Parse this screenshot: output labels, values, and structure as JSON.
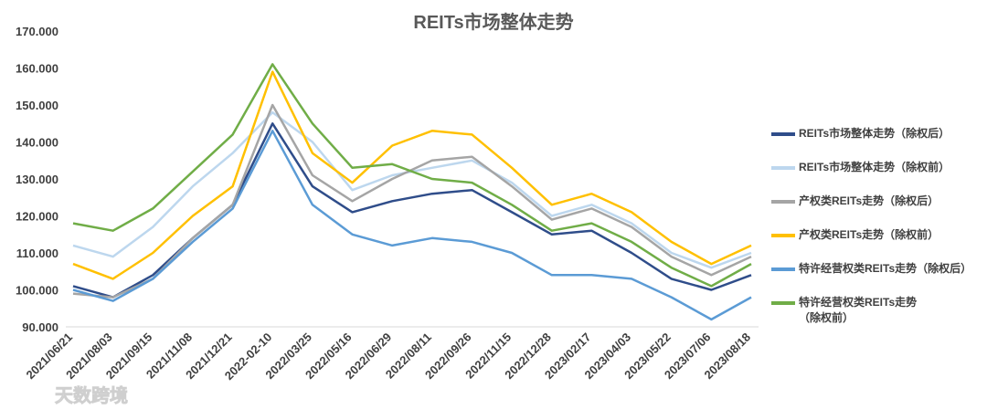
{
  "chart_data": {
    "type": "line",
    "title": "REITs市场整体走势",
    "xlabel": "",
    "ylabel": "",
    "ylim": [
      90,
      170
    ],
    "yticks": [
      "90.000",
      "100.000",
      "110.000",
      "120.000",
      "130.000",
      "140.000",
      "150.000",
      "160.000",
      "170.000"
    ],
    "x_tick_labels": [
      "2021/06/21",
      "2021/08/03",
      "2021/09/15",
      "2021/11/08",
      "2021/12/21",
      "2022-02-10",
      "2022/03/25",
      "2022/05/16",
      "2022/06/29",
      "2022/08/11",
      "2022/09/26",
      "2022/11/15",
      "2022/12/28",
      "2023/02/17",
      "2023/04/03",
      "2023/05/22",
      "2023/07/06",
      "2023/08/18"
    ],
    "legend_position": "right",
    "grid": false,
    "series": [
      {
        "name": "REITs市场整体走势（除权后）",
        "color": "#2F4D8A",
        "values": [
          101,
          98,
          104,
          114,
          123,
          145,
          128,
          121,
          124,
          126,
          127,
          121,
          115,
          116,
          110,
          103,
          100,
          104
        ]
      },
      {
        "name": "REITs市场整体走势（除权前）",
        "color": "#BDD7EE",
        "values": [
          112,
          109,
          117,
          128,
          137,
          148,
          140,
          127,
          131,
          133,
          135,
          129,
          120,
          123,
          118,
          110,
          106,
          110
        ]
      },
      {
        "name": "产权类REITs走势（除权后）",
        "color": "#A5A5A5",
        "values": [
          99,
          98,
          103,
          114,
          123,
          150,
          131,
          124,
          130,
          135,
          136,
          128,
          119,
          122,
          117,
          109,
          104,
          109
        ]
      },
      {
        "name": "产权类REITs走势（除权前）",
        "color": "#FFC000",
        "values": [
          107,
          103,
          110,
          120,
          128,
          159,
          137,
          129,
          139,
          143,
          142,
          133,
          123,
          126,
          121,
          113,
          107,
          112
        ]
      },
      {
        "name": "特许经营权类REITs走势（除权后）",
        "color": "#5B9BD5",
        "values": [
          100,
          97,
          103,
          113,
          122,
          143,
          123,
          115,
          112,
          114,
          113,
          110,
          104,
          104,
          103,
          98,
          92,
          98
        ]
      },
      {
        "name": "特许经营权类REITs走势\n（除权前）",
        "color": "#70AD47",
        "values": [
          118,
          116,
          122,
          132,
          142,
          161,
          145,
          133,
          134,
          130,
          129,
          123,
          116,
          118,
          113,
          106,
          101,
          107
        ]
      }
    ]
  },
  "watermark": "天数跨境"
}
